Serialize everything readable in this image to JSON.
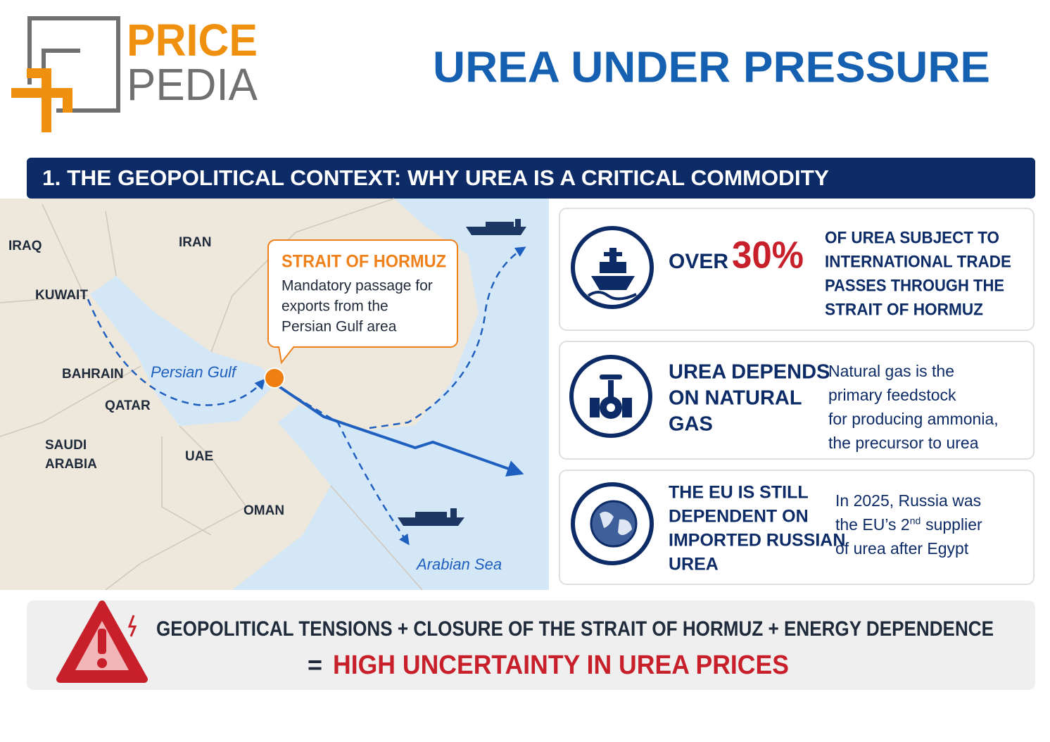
{
  "logo": {
    "top": "PRICE",
    "bottom": "PEDIA"
  },
  "header": {
    "title": "UREA UNDER PRESSURE"
  },
  "section": {
    "title": "1. THE GEOPOLITICAL CONTEXT: WHY UREA IS A CRITICAL COMMODITY"
  },
  "map": {
    "labels": [
      "IRAQ",
      "IRAN",
      "KUWAIT",
      "BAHRAIN",
      "Persian Gulf",
      "QATAR",
      "SAUDI",
      "ARABIA",
      "UAE",
      "OMAN",
      "Arabian Sea"
    ],
    "callout": {
      "title": "STRAIT OF HORMUZ",
      "lines": [
        "Mandatory passage for",
        "exports from the",
        "Persian Gulf area"
      ]
    }
  },
  "cards": [
    {
      "lead": "OVER",
      "highlight": "30%",
      "lines": [
        "OF UREA SUBJECT TO",
        "INTERNATIONAL TRADE",
        "PASSES THROUGH THE",
        "STRAIT OF HORMUZ"
      ]
    },
    {
      "heading": [
        "UREA DEPENDS",
        "ON NATURAL",
        "GAS"
      ],
      "lines": [
        "Natural gas is the",
        "primary feedstock",
        "for producing ammonia,",
        "the precursor to urea"
      ]
    },
    {
      "heading": [
        "THE EU IS STILL",
        "DEPENDENT ON",
        "IMPORTED RUSSIAN",
        "UREA"
      ],
      "lines": [
        "In 2025, Russia was",
        "the EU’s 2",
        "nd",
        " supplier",
        "of urea after Egypt"
      ]
    }
  ],
  "footer": {
    "line": "GEOPOLITICAL TENSIONS + CLOSURE OF THE STRAIT OF HORMUZ + ENERGY DEPENDENCE",
    "equals": "=",
    "result": "HIGH UNCERTAINTY IN UREA PRICES"
  }
}
